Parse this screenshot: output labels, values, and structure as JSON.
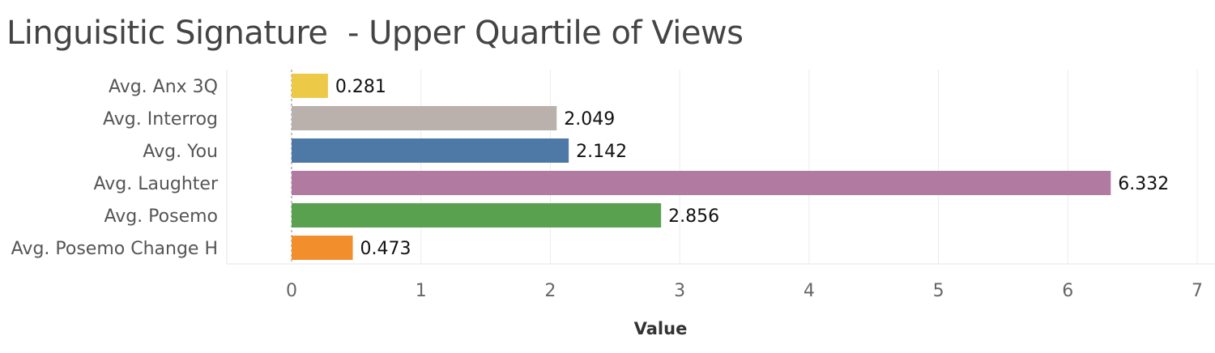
{
  "chart_data": {
    "type": "bar",
    "orientation": "horizontal",
    "title": "Linguisitic Signature  - Upper Quartile of Views",
    "xlabel": "Value",
    "ylabel": "",
    "xlim": [
      0,
      7
    ],
    "ticks": [
      0,
      1,
      2,
      3,
      4,
      5,
      6,
      7
    ],
    "grid": true,
    "categories": [
      "Avg. Anx 3Q",
      "Avg. Interrog",
      "Avg. You",
      "Avg. Laughter",
      "Avg. Posemo",
      "Avg. Posemo Change H"
    ],
    "values": [
      0.281,
      2.049,
      2.142,
      6.332,
      2.856,
      0.473
    ],
    "value_labels": [
      "0.281",
      "2.049",
      "2.142",
      "6.332",
      "2.856",
      "0.473"
    ],
    "colors": [
      "#EDC948",
      "#BAB0AC",
      "#4E79A7",
      "#B07AA1",
      "#59A14F",
      "#F28E2B"
    ]
  }
}
